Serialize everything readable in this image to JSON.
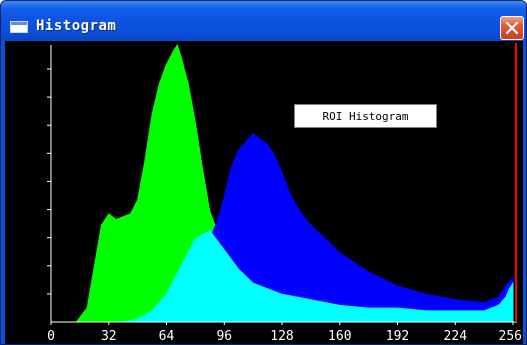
{
  "window": {
    "title": "Histogram",
    "close_icon": "close-icon",
    "title_icon": "window-icon"
  },
  "plot": {
    "label": "ROI Histogram",
    "background": "#000000",
    "axis_color": "#ffffff",
    "max_line_color": "#ff0000"
  },
  "chart_data": {
    "type": "area",
    "title": "ROI Histogram",
    "xlim": [
      0,
      256
    ],
    "x_ticks": [
      "0",
      "32",
      "64",
      "96",
      "128",
      "160",
      "192",
      "224",
      "256"
    ],
    "y_ticks_count": 9,
    "grid": false,
    "series": [
      {
        "color": "#00ff00",
        "x": [
          0,
          14,
          20,
          24,
          28,
          32,
          36,
          40,
          44,
          48,
          52,
          56,
          60,
          64,
          68,
          70,
          72,
          76,
          80,
          84,
          88,
          92,
          96
        ],
        "values": [
          0,
          0,
          0.05,
          0.2,
          0.35,
          0.39,
          0.37,
          0.38,
          0.39,
          0.44,
          0.58,
          0.75,
          0.86,
          0.93,
          0.98,
          1.0,
          0.96,
          0.86,
          0.72,
          0.55,
          0.4,
          0.33,
          0.3
        ]
      },
      {
        "color": "#00ffff",
        "x": [
          0,
          40,
          48,
          56,
          64,
          72,
          80,
          88,
          96,
          104,
          112,
          128,
          144,
          160,
          176,
          192,
          208,
          224,
          240,
          248,
          252,
          254,
          256
        ],
        "values": [
          0,
          0,
          0.01,
          0.04,
          0.1,
          0.2,
          0.3,
          0.33,
          0.26,
          0.19,
          0.14,
          0.1,
          0.08,
          0.06,
          0.05,
          0.05,
          0.04,
          0.04,
          0.04,
          0.06,
          0.09,
          0.12,
          0.14
        ]
      },
      {
        "color": "#0000ff",
        "x": [
          88,
          92,
          96,
          100,
          104,
          108,
          112,
          116,
          120,
          124,
          128,
          132,
          136,
          140,
          144,
          152,
          160,
          176,
          192,
          208,
          224,
          240,
          248,
          252,
          256
        ],
        "values": [
          0.3,
          0.36,
          0.45,
          0.56,
          0.62,
          0.65,
          0.68,
          0.66,
          0.64,
          0.6,
          0.54,
          0.47,
          0.42,
          0.38,
          0.35,
          0.3,
          0.25,
          0.18,
          0.13,
          0.1,
          0.08,
          0.07,
          0.09,
          0.13,
          0.16
        ]
      }
    ]
  }
}
